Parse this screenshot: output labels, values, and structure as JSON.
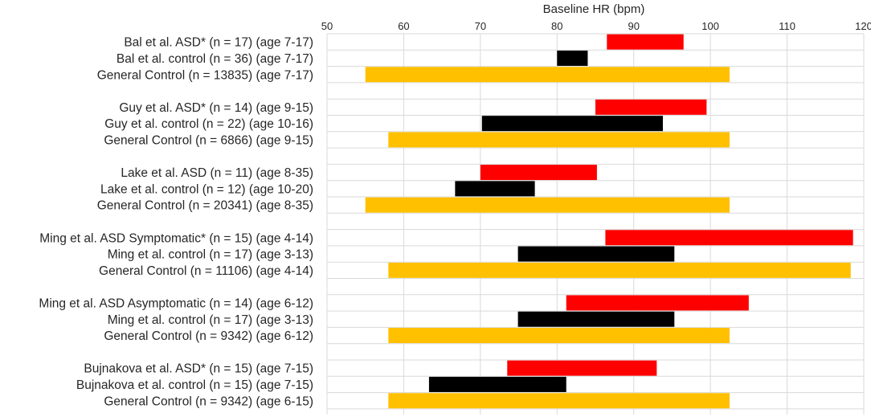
{
  "chart_data": {
    "type": "bar",
    "subtype": "floating-range-horizontal",
    "title": "",
    "xlabel": "Baseline HR (bpm)",
    "ylabel": "",
    "xlim": [
      50,
      120
    ],
    "xticks": [
      50,
      60,
      70,
      80,
      90,
      100,
      110,
      120
    ],
    "grid": true,
    "legend": "none",
    "colors": {
      "asd": "#ff0000",
      "control": "#000000",
      "general": "#ffc000"
    },
    "groups": [
      {
        "rows": [
          {
            "label": "Bal et al. ASD* (n = 17) (age 7-17)",
            "kind": "asd",
            "low": 86.5,
            "high": 96.5
          },
          {
            "label": "Bal et al. control (n = 36) (age 7-17)",
            "kind": "control",
            "low": 80,
            "high": 84
          },
          {
            "label": "General Control (n = 13835) (age 7-17)",
            "kind": "general",
            "low": 55,
            "high": 102.5
          }
        ]
      },
      {
        "rows": [
          {
            "label": "Guy et al. ASD* (n = 14) (age 9-15)",
            "kind": "asd",
            "low": 85,
            "high": 99.5
          },
          {
            "label": "Guy et al. control (n = 22) (age 10-16)",
            "kind": "control",
            "low": 70.2,
            "high": 93.8
          },
          {
            "label": "General Control (n = 6866) (age 9-15)",
            "kind": "general",
            "low": 58,
            "high": 102.5
          }
        ]
      },
      {
        "rows": [
          {
            "label": "Lake et al. ASD (n = 11) (age 8-35)",
            "kind": "asd",
            "low": 70,
            "high": 85.2
          },
          {
            "label": "Lake et al. control (n = 12) (age 10-20)",
            "kind": "control",
            "low": 66.7,
            "high": 77.1
          },
          {
            "label": "General Control (n = 20341) (age 8-35)",
            "kind": "general",
            "low": 55,
            "high": 102.5
          }
        ]
      },
      {
        "rows": [
          {
            "label": "Ming et al. ASD Symptomatic* (n = 15) (age 4-14)",
            "kind": "asd",
            "low": 86.3,
            "high": 118.6
          },
          {
            "label": "Ming et al. control (n = 17) (age 3-13)",
            "kind": "control",
            "low": 74.9,
            "high": 95.3
          },
          {
            "label": "General Control (n = 11106) (age 4-14)",
            "kind": "general",
            "low": 58,
            "high": 118.3
          }
        ]
      },
      {
        "rows": [
          {
            "label": "Ming et al. ASD Asymptomatic (n = 14) (age 6-12)",
            "kind": "asd",
            "low": 81.2,
            "high": 105
          },
          {
            "label": "Ming et al. control (n = 17) (age 3-13)",
            "kind": "control",
            "low": 74.9,
            "high": 95.3
          },
          {
            "label": "General Control (n = 9342) (age 6-12)",
            "kind": "general",
            "low": 58,
            "high": 102.5
          }
        ]
      },
      {
        "rows": [
          {
            "label": "Bujnakova et al. ASD* (n = 15) (age 7-15)",
            "kind": "asd",
            "low": 73.5,
            "high": 93
          },
          {
            "label": "Bujnakova et al. control (n = 15) (age 7-15)",
            "kind": "control",
            "low": 63.3,
            "high": 81.2
          },
          {
            "label": "General Control (n = 9342) (age 6-15)",
            "kind": "general",
            "low": 58,
            "high": 102.5
          }
        ]
      }
    ]
  }
}
